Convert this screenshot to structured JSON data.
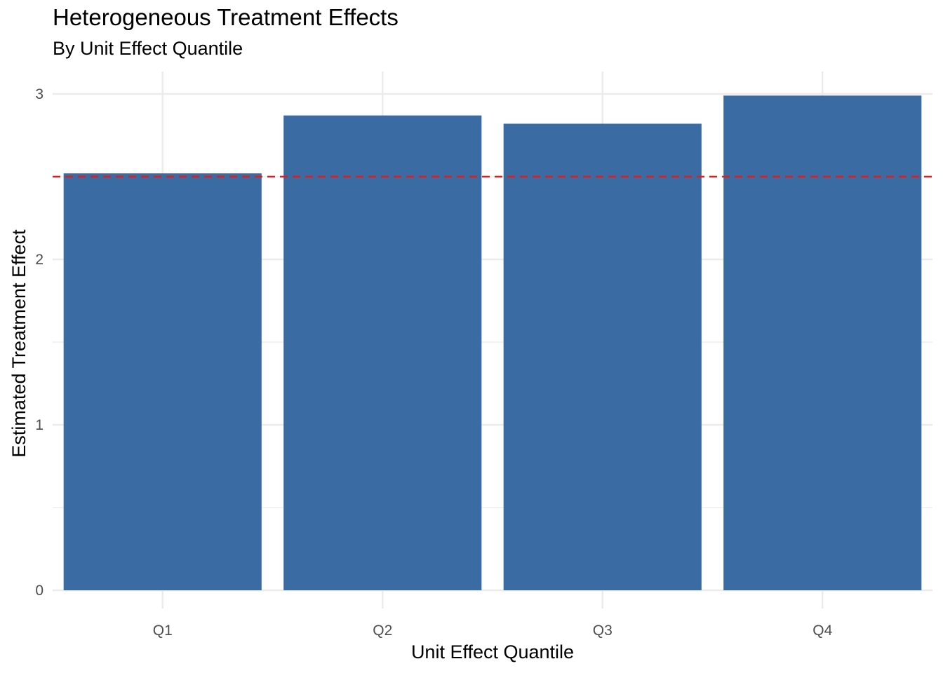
{
  "chart_data": {
    "type": "bar",
    "title": "Heterogeneous Treatment Effects",
    "subtitle": "By Unit Effect Quantile",
    "xlabel": "Unit Effect Quantile",
    "ylabel": "Estimated Treatment Effect",
    "categories": [
      "Q1",
      "Q2",
      "Q3",
      "Q4"
    ],
    "values": [
      2.52,
      2.87,
      2.82,
      2.99
    ],
    "ylim": [
      0,
      3.13
    ],
    "yticks": [
      "0",
      "1",
      "2",
      "3"
    ],
    "reference_line": {
      "value": 2.5,
      "style": "dashed"
    },
    "grid": true,
    "colors": {
      "bar": "#3a6ca3",
      "reference_line": "#e41a1c",
      "grid": "#ebebeb"
    }
  }
}
